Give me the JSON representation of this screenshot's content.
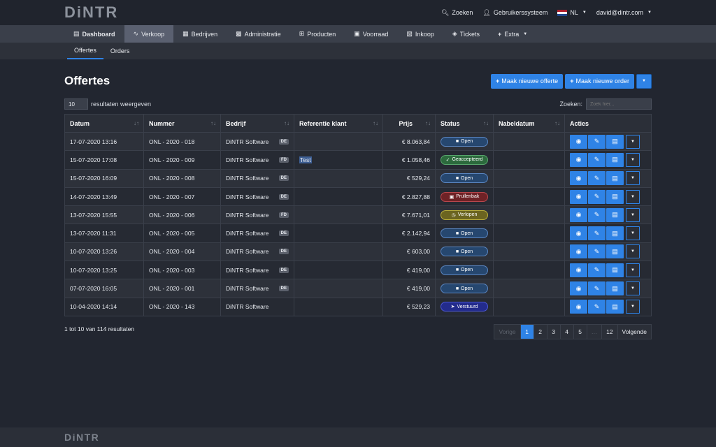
{
  "brand": "DiNTR",
  "topbar": {
    "search_label": "Zoeken",
    "system_label": "Gebruikerssysteem",
    "language": "NL",
    "user_email": "david@dintr.com"
  },
  "mainnav": [
    {
      "label": "Dashboard",
      "icon": "chart-icon"
    },
    {
      "label": "Verkoop",
      "icon": "line-chart-icon"
    },
    {
      "label": "Bedrijven",
      "icon": "building-icon"
    },
    {
      "label": "Administratie",
      "icon": "money-icon"
    },
    {
      "label": "Producten",
      "icon": "grid-icon"
    },
    {
      "label": "Voorraad",
      "icon": "warehouse-icon"
    },
    {
      "label": "Inkoop",
      "icon": "inbox-icon"
    },
    {
      "label": "Tickets",
      "icon": "tags-icon"
    },
    {
      "label": "Extra",
      "icon": "plus-icon"
    }
  ],
  "subnav": [
    {
      "label": "Offertes"
    },
    {
      "label": "Orders"
    }
  ],
  "page": {
    "title": "Offertes",
    "new_quote_button": "Maak nieuwe offerte",
    "new_order_button": "Maak nieuwe order"
  },
  "controls": {
    "page_length": "10",
    "page_length_suffix": "resultaten weergeven",
    "search_label": "Zoeken:",
    "search_placeholder": "Zoek hier..."
  },
  "table": {
    "columns": [
      "Datum",
      "Nummer",
      "Bedrijf",
      "Referentie klant",
      "Prijs",
      "Status",
      "Nabeldatum",
      "Acties"
    ],
    "rows": [
      {
        "datum": "17-07-2020 13:16",
        "nummer": "ONL - 2020 - 018",
        "bedrijf": "DiNTR Software",
        "cc": "DE",
        "referentie": "",
        "prijs": "€ 8.063,84",
        "status": "Open",
        "status_type": "open",
        "status_icon": "folder-icon",
        "nabeldatum": ""
      },
      {
        "datum": "15-07-2020 17:08",
        "nummer": "ONL - 2020 - 009",
        "bedrijf": "DiNTR Software",
        "cc": "FD",
        "referentie": "Test",
        "prijs": "€ 1.058,46",
        "status": "Geaccepteerd",
        "status_type": "acc",
        "status_icon": "check-icon",
        "nabeldatum": ""
      },
      {
        "datum": "15-07-2020 16:09",
        "nummer": "ONL - 2020 - 008",
        "bedrijf": "DiNTR Software",
        "cc": "DE",
        "referentie": "",
        "prijs": "€ 529,24",
        "status": "Open",
        "status_type": "open",
        "status_icon": "folder-icon",
        "nabeldatum": ""
      },
      {
        "datum": "14-07-2020 13:49",
        "nummer": "ONL - 2020 - 007",
        "bedrijf": "DiNTR Software",
        "cc": "DE",
        "referentie": "",
        "prijs": "€ 2.827,88",
        "status": "Prullenbak",
        "status_type": "trash",
        "status_icon": "trash-icon",
        "nabeldatum": ""
      },
      {
        "datum": "13-07-2020 15:55",
        "nummer": "ONL - 2020 - 006",
        "bedrijf": "DiNTR Software",
        "cc": "FD",
        "referentie": "",
        "prijs": "€ 7.671,01",
        "status": "Verlopen",
        "status_type": "exp",
        "status_icon": "clock-icon",
        "nabeldatum": ""
      },
      {
        "datum": "13-07-2020 11:31",
        "nummer": "ONL - 2020 - 005",
        "bedrijf": "DiNTR Software",
        "cc": "DE",
        "referentie": "",
        "prijs": "€ 2.142,94",
        "status": "Open",
        "status_type": "open",
        "status_icon": "folder-icon",
        "nabeldatum": ""
      },
      {
        "datum": "10-07-2020 13:26",
        "nummer": "ONL - 2020 - 004",
        "bedrijf": "DiNTR Software",
        "cc": "DE",
        "referentie": "",
        "prijs": "€ 603,00",
        "status": "Open",
        "status_type": "open",
        "status_icon": "folder-icon",
        "nabeldatum": ""
      },
      {
        "datum": "10-07-2020 13:25",
        "nummer": "ONL - 2020 - 003",
        "bedrijf": "DiNTR Software",
        "cc": "DE",
        "referentie": "",
        "prijs": "€ 419,00",
        "status": "Open",
        "status_type": "open",
        "status_icon": "folder-icon",
        "nabeldatum": ""
      },
      {
        "datum": "07-07-2020 16:05",
        "nummer": "ONL - 2020 - 001",
        "bedrijf": "DiNTR Software",
        "cc": "DE",
        "referentie": "",
        "prijs": "€ 419,00",
        "status": "Open",
        "status_type": "open",
        "status_icon": "folder-icon",
        "nabeldatum": ""
      },
      {
        "datum": "10-04-2020 14:14",
        "nummer": "ONL - 2020 - 143",
        "bedrijf": "DiNTR Software",
        "cc": "",
        "referentie": "",
        "prijs": "€ 529,23",
        "status": "Verstuurd",
        "status_type": "sent",
        "status_icon": "send-icon",
        "nabeldatum": ""
      }
    ]
  },
  "footer_info": "1 tot 10 van 114 resultaten",
  "pagination": {
    "prev": "Vorige",
    "pages": [
      "1",
      "2",
      "3",
      "4",
      "5",
      "…",
      "12"
    ],
    "active": "1",
    "next": "Volgende"
  },
  "colors": {
    "accent": "#2f83e6",
    "background": "#222630"
  }
}
